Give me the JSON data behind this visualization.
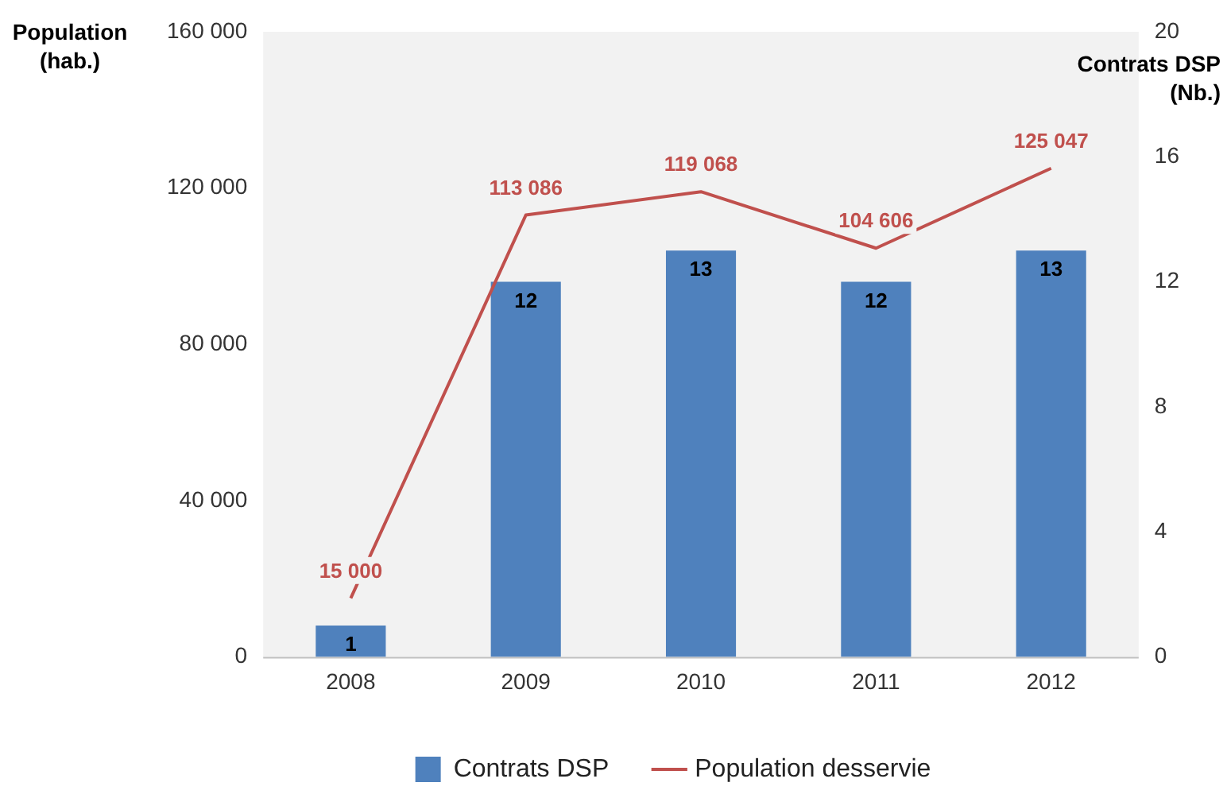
{
  "chart_data": {
    "type": "bar",
    "categories": [
      "2008",
      "2009",
      "2010",
      "2011",
      "2012"
    ],
    "ylabel": "Population\n(hab.)",
    "y2label": "Contrats DSP\n(Nb.)",
    "ylim": [
      0,
      160000
    ],
    "yticks": [
      {
        "value": 0,
        "label": "0"
      },
      {
        "value": 40000,
        "label": "40 000"
      },
      {
        "value": 80000,
        "label": "80 000"
      },
      {
        "value": 120000,
        "label": "120 000"
      },
      {
        "value": 160000,
        "label": "160 000"
      }
    ],
    "y2lim": [
      0,
      20
    ],
    "y2ticks": [
      0,
      4,
      8,
      12,
      16,
      20
    ],
    "series": [
      {
        "name": "Contrats DSP",
        "axis": "y2",
        "color": "#4f81bd",
        "values": [
          1,
          12,
          13,
          12,
          13
        ],
        "value_labels": [
          "1",
          "12",
          "13",
          "12",
          "13"
        ]
      },
      {
        "name": "Population desservie",
        "type": "line",
        "axis": "y",
        "color": "#c0504d",
        "values": [
          15000,
          113086,
          119068,
          104606,
          125047
        ],
        "value_labels": [
          "15 000",
          "113 086",
          "119 068",
          "104 606",
          "125 047"
        ]
      }
    ],
    "grid": false,
    "legend": "bottom",
    "marker": "none",
    "line_style": "solid"
  }
}
